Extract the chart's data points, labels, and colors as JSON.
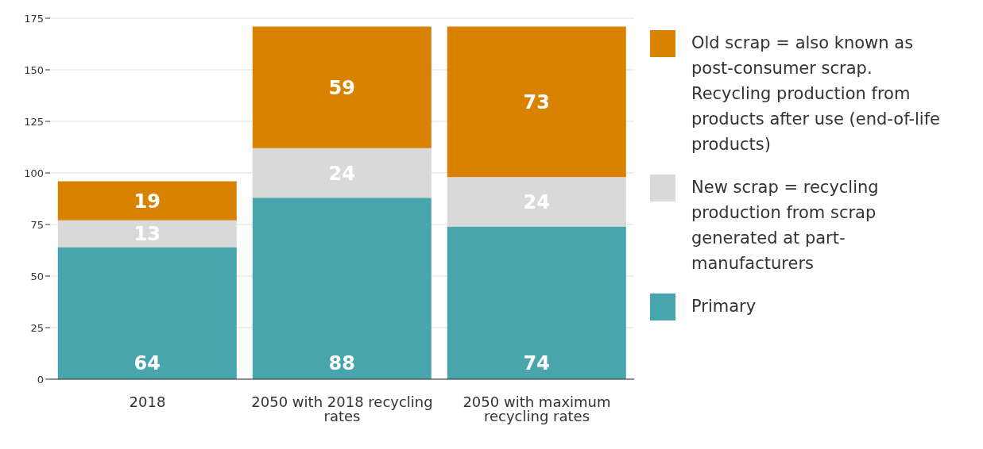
{
  "chart_data": {
    "type": "bar",
    "stacked": true,
    "categories": [
      "2018",
      "2050 with 2018 recycling rates",
      "2050 with maximum recycling rates"
    ],
    "series": [
      {
        "name": "Primary",
        "color": "#48a5ae",
        "values": [
          64,
          88,
          74
        ]
      },
      {
        "name": "New scrap = recycling production from scrap generated at part-manufacturers",
        "color": "#d9d9d9",
        "values": [
          13,
          24,
          24
        ]
      },
      {
        "name": "Old scrap = also known as post-consumer scrap. Recycling production from products after use (end-of-life products)",
        "color": "#d98200",
        "values": [
          19,
          59,
          73
        ]
      }
    ],
    "ylim": [
      0,
      175
    ],
    "yticks": [
      0,
      25,
      50,
      75,
      100,
      125,
      150,
      175
    ],
    "grid": "y",
    "legend": "right",
    "data_labels": true
  }
}
